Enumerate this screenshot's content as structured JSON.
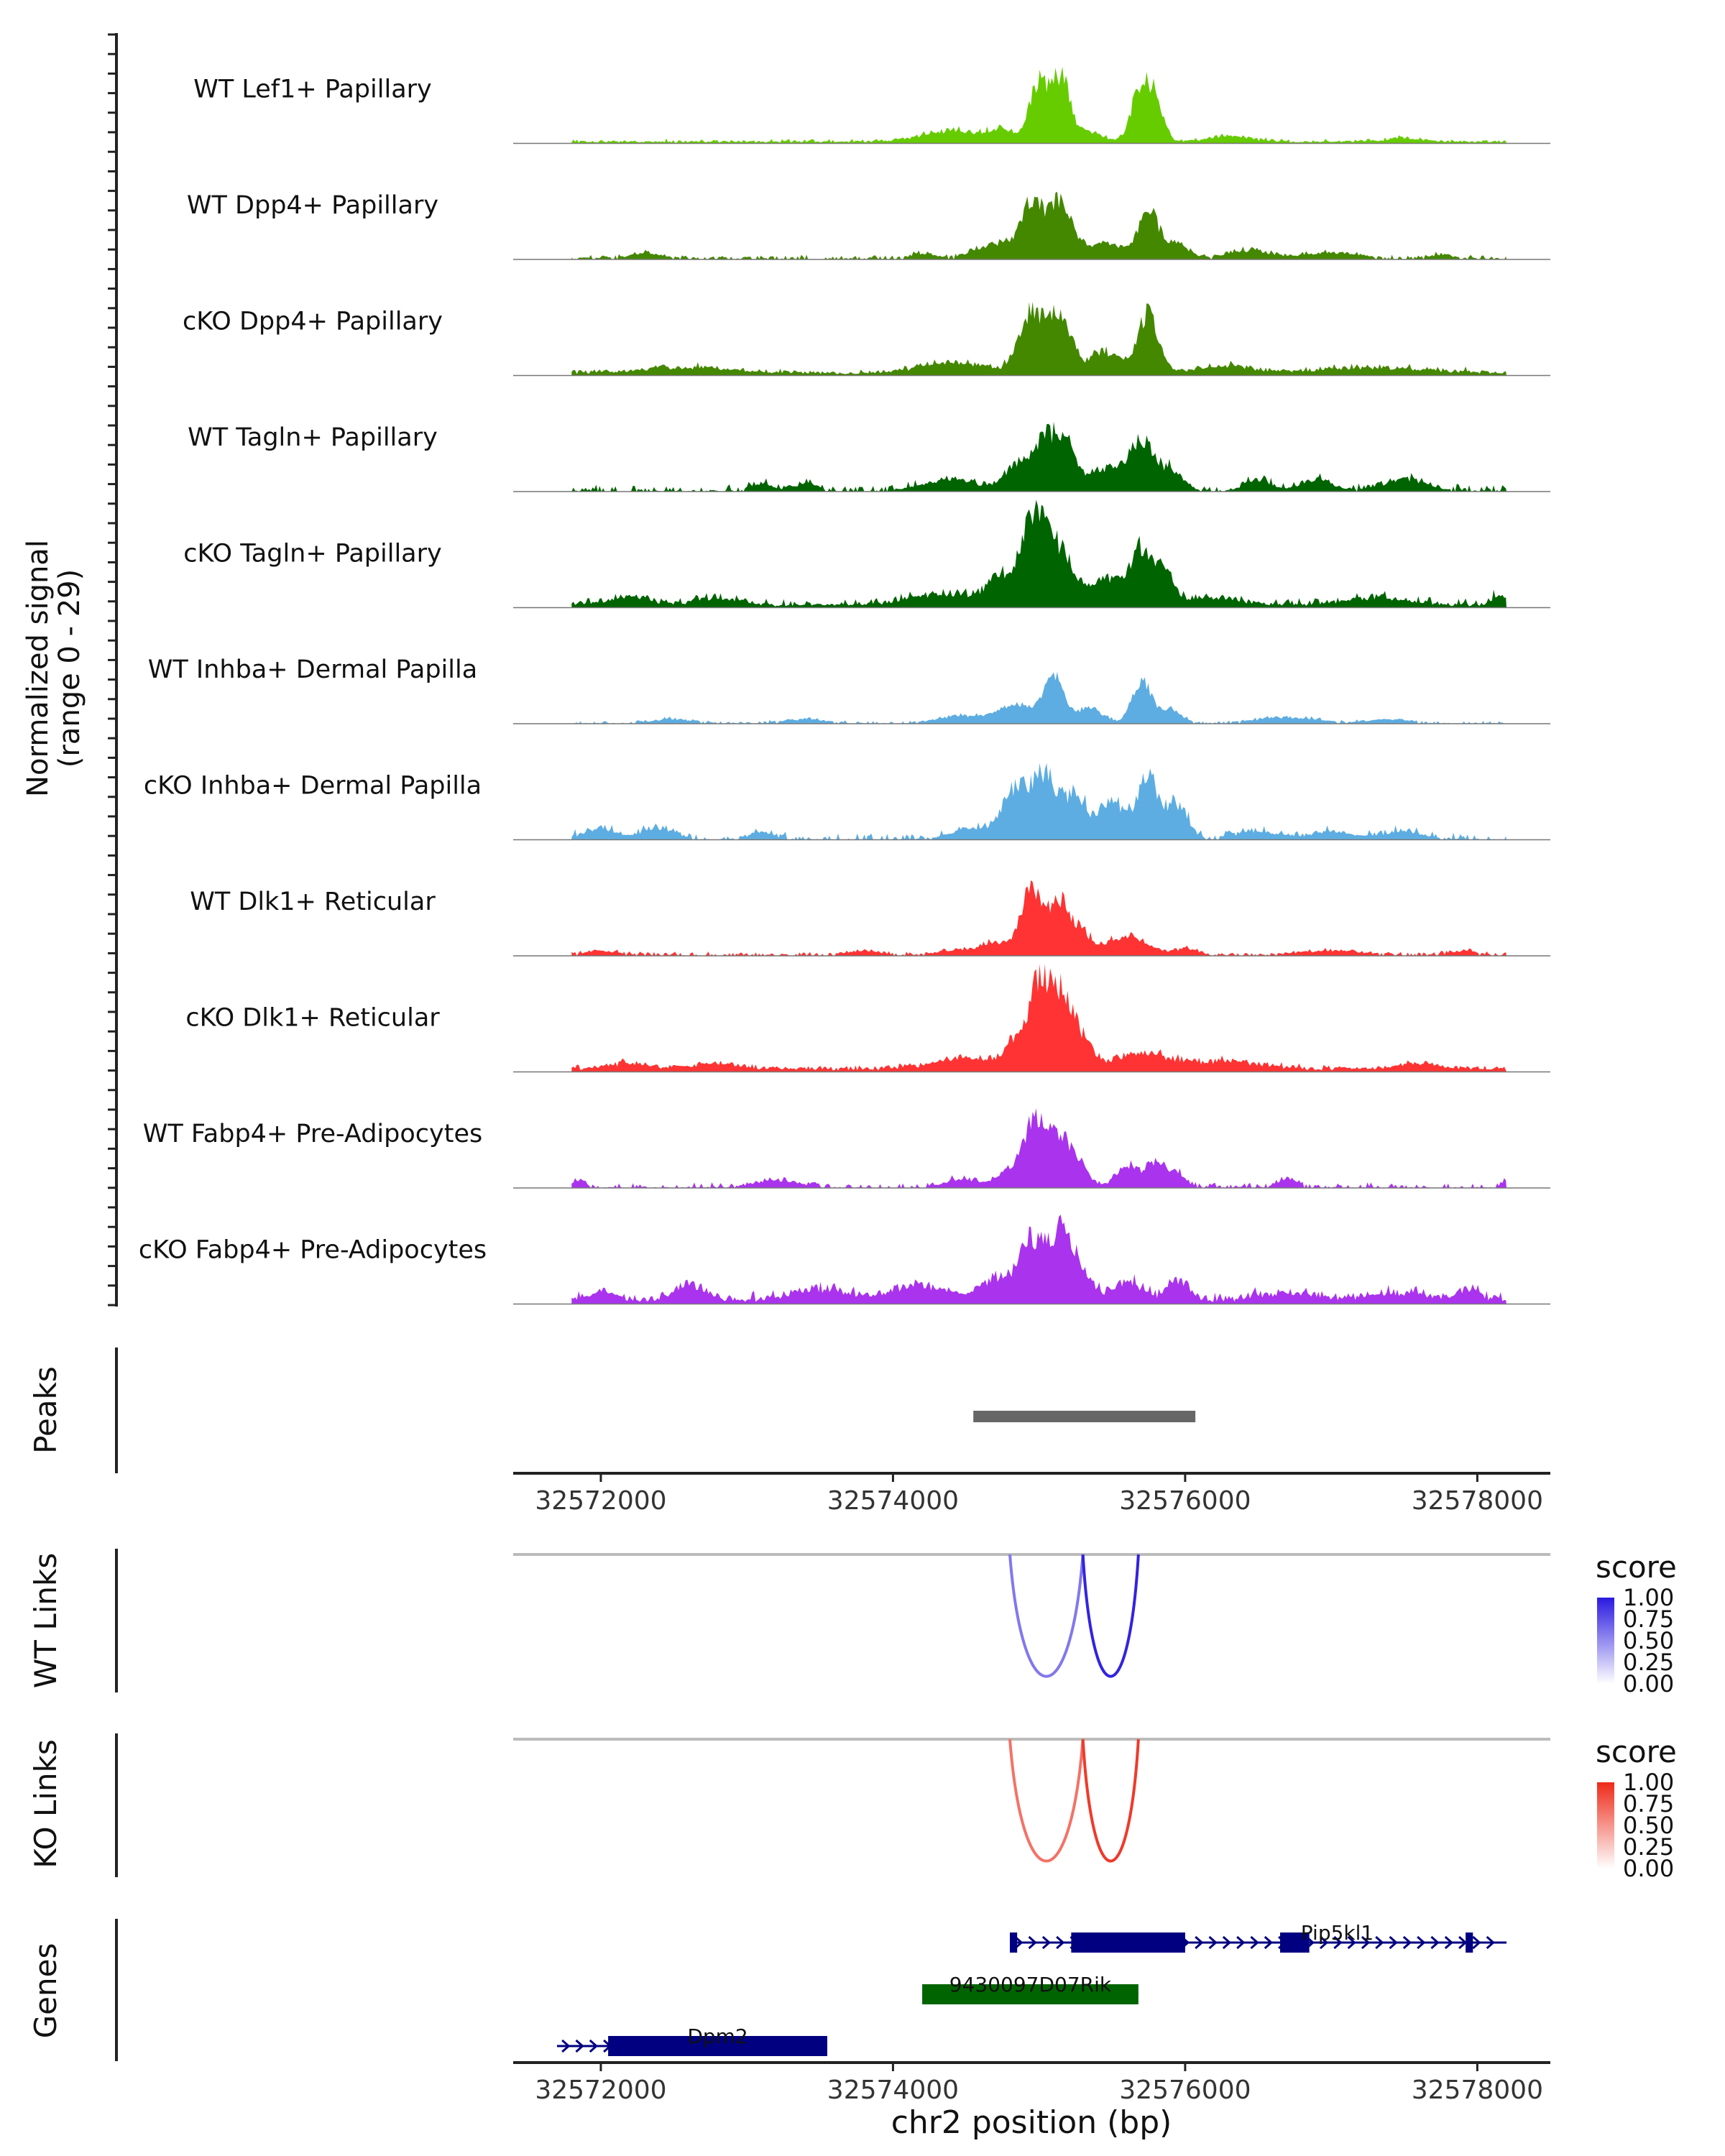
{
  "chart_data": {
    "type": "area",
    "title": "",
    "region": {
      "chromosome": "chr2",
      "start": 32571400,
      "end": 32578500
    },
    "coverage": {
      "ylabel_line1": "Normalized signal",
      "ylabel_line2": "(range 0 - 29)",
      "ylim": [
        0,
        29
      ],
      "x_start": 32571800,
      "x_end": 32578200,
      "tracks": [
        {
          "name": "WT Lef1+ Papillary",
          "color": "#66CC00",
          "baseline": 0.5,
          "noise": 0.6,
          "seed": 3,
          "peaks": [
            [
              32574400,
              280,
              3
            ],
            [
              32574750,
              120,
              3
            ],
            [
              32575000,
              90,
              17
            ],
            [
              32575150,
              80,
              16
            ],
            [
              32575300,
              160,
              3
            ],
            [
              32575700,
              90,
              15
            ],
            [
              32575800,
              80,
              9
            ],
            [
              32576300,
              200,
              1.5
            ],
            [
              32577500,
              150,
              1
            ]
          ]
        },
        {
          "name": "WT Dpp4+ Papillary",
          "color": "#448800",
          "baseline": 0.4,
          "noise": 0.8,
          "seed": 5,
          "peaks": [
            [
              32572300,
              150,
              1.2
            ],
            [
              32574200,
              120,
              1.2
            ],
            [
              32574700,
              180,
              4
            ],
            [
              32574950,
              110,
              14
            ],
            [
              32575150,
              120,
              15
            ],
            [
              32575450,
              150,
              4
            ],
            [
              32575750,
              100,
              13
            ],
            [
              32575950,
              100,
              4
            ],
            [
              32576450,
              200,
              2
            ],
            [
              32577000,
              250,
              1.5
            ],
            [
              32577750,
              100,
              1
            ]
          ]
        },
        {
          "name": "cKO Dpp4+ Papillary",
          "color": "#448800",
          "baseline": 0.8,
          "noise": 0.8,
          "seed": 7,
          "peaks": [
            [
              32572600,
              450,
              1.5
            ],
            [
              32574400,
              300,
              3
            ],
            [
              32574950,
              120,
              17
            ],
            [
              32575150,
              100,
              16
            ],
            [
              32575450,
              150,
              6
            ],
            [
              32575750,
              100,
              16
            ],
            [
              32576300,
              250,
              2
            ],
            [
              32577300,
              500,
              1.5
            ]
          ]
        },
        {
          "name": "WT Tagln+ Papillary",
          "color": "#006400",
          "baseline": 0.3,
          "noise": 1.5,
          "seed": 9,
          "peaks": [
            [
              32573100,
              100,
              2
            ],
            [
              32573400,
              100,
              2
            ],
            [
              32574400,
              250,
              3
            ],
            [
              32574850,
              120,
              7
            ],
            [
              32575050,
              110,
              15
            ],
            [
              32575200,
              90,
              10
            ],
            [
              32575450,
              150,
              6
            ],
            [
              32575700,
              120,
              13
            ],
            [
              32575900,
              120,
              5
            ],
            [
              32576500,
              120,
              3
            ],
            [
              32576900,
              150,
              3
            ],
            [
              32577500,
              200,
              3
            ]
          ]
        },
        {
          "name": "cKO Tagln+ Papillary",
          "color": "#006400",
          "baseline": 0.8,
          "noise": 1.5,
          "seed": 11,
          "peaks": [
            [
              32572200,
              200,
              2
            ],
            [
              32572800,
              200,
              2
            ],
            [
              32574300,
              300,
              3
            ],
            [
              32574750,
              150,
              8
            ],
            [
              32574970,
              110,
              24
            ],
            [
              32575150,
              120,
              15
            ],
            [
              32575450,
              150,
              7
            ],
            [
              32575700,
              110,
              15
            ],
            [
              32575850,
              100,
              8
            ],
            [
              32576200,
              250,
              2
            ],
            [
              32577300,
              300,
              2
            ],
            [
              32578150,
              60,
              3
            ]
          ]
        },
        {
          "name": "WT Inhba+ Dermal Papilla",
          "color": "#5DADE2",
          "baseline": 0.2,
          "noise": 0.5,
          "seed": 13,
          "peaks": [
            [
              32572500,
              200,
              1
            ],
            [
              32573400,
              200,
              1
            ],
            [
              32574500,
              250,
              2
            ],
            [
              32574850,
              150,
              5
            ],
            [
              32575100,
              100,
              12
            ],
            [
              32575350,
              120,
              4
            ],
            [
              32575700,
              90,
              12
            ],
            [
              32575900,
              100,
              4
            ],
            [
              32576700,
              300,
              1.5
            ],
            [
              32577400,
              200,
              1
            ]
          ]
        },
        {
          "name": "cKO Inhba+ Dermal Papilla",
          "color": "#5DADE2",
          "baseline": 0.2,
          "noise": 1.8,
          "seed": 15,
          "peaks": [
            [
              32572000,
              150,
              3
            ],
            [
              32572400,
              150,
              3
            ],
            [
              32573100,
              100,
              2
            ],
            [
              32574550,
              200,
              3
            ],
            [
              32574850,
              130,
              14
            ],
            [
              32575050,
              110,
              17
            ],
            [
              32575250,
              100,
              12
            ],
            [
              32575500,
              130,
              10
            ],
            [
              32575750,
              100,
              17
            ],
            [
              32575950,
              100,
              9
            ],
            [
              32576500,
              200,
              2
            ],
            [
              32577000,
              200,
              2
            ],
            [
              32577500,
              200,
              2
            ]
          ]
        },
        {
          "name": "WT Dlk1+ Reticular",
          "color": "#FF3333",
          "baseline": 0.4,
          "noise": 0.6,
          "seed": 17,
          "peaks": [
            [
              32572000,
              150,
              1
            ],
            [
              32573800,
              150,
              1
            ],
            [
              32574500,
              200,
              1.5
            ],
            [
              32574700,
              100,
              3
            ],
            [
              32574950,
              110,
              18
            ],
            [
              32575150,
              100,
              14
            ],
            [
              32575300,
              80,
              5
            ],
            [
              32575600,
              200,
              5
            ],
            [
              32576000,
              100,
              1.5
            ],
            [
              32577000,
              300,
              1
            ],
            [
              32577900,
              100,
              1
            ]
          ]
        },
        {
          "name": "cKO Dlk1+ Reticular",
          "color": "#FF3333",
          "baseline": 1,
          "noise": 0.8,
          "seed": 19,
          "peaks": [
            [
              32572200,
              200,
              1.5
            ],
            [
              32572800,
              200,
              1.5
            ],
            [
              32574500,
              300,
              3
            ],
            [
              32574850,
              100,
              8
            ],
            [
              32575000,
              90,
              22
            ],
            [
              32575150,
              110,
              21
            ],
            [
              32575300,
              90,
              6
            ],
            [
              32575700,
              300,
              4
            ],
            [
              32576300,
              300,
              2
            ],
            [
              32577600,
              200,
              1.5
            ]
          ]
        },
        {
          "name": "WT Fabp4+ Pre-Adipocytes",
          "color": "#AA33EE",
          "baseline": 0.2,
          "noise": 1.2,
          "seed": 21,
          "peaks": [
            [
              32571850,
              50,
              2
            ],
            [
              32573200,
              200,
              2
            ],
            [
              32574500,
              200,
              2
            ],
            [
              32574800,
              100,
              4
            ],
            [
              32574970,
              110,
              18
            ],
            [
              32575150,
              110,
              14
            ],
            [
              32575300,
              80,
              4
            ],
            [
              32575600,
              100,
              6
            ],
            [
              32575800,
              100,
              7
            ],
            [
              32575950,
              80,
              3
            ],
            [
              32576700,
              100,
              2
            ],
            [
              32578200,
              40,
              2
            ]
          ]
        },
        {
          "name": "cKO Fabp4+ Pre-Adipocytes",
          "color": "#AA33EE",
          "baseline": 1,
          "noise": 1.8,
          "seed": 23,
          "peaks": [
            [
              32572000,
              150,
              2
            ],
            [
              32572600,
              150,
              4
            ],
            [
              32573500,
              300,
              3
            ],
            [
              32574200,
              250,
              4
            ],
            [
              32574700,
              150,
              6
            ],
            [
              32574950,
              120,
              16
            ],
            [
              32575150,
              110,
              18
            ],
            [
              32575300,
              100,
              6
            ],
            [
              32575600,
              150,
              5
            ],
            [
              32575950,
              100,
              6
            ],
            [
              32576700,
              300,
              2
            ],
            [
              32577500,
              300,
              2
            ],
            [
              32577950,
              100,
              3
            ]
          ]
        }
      ]
    },
    "peaks_track": {
      "label": "Peaks",
      "intervals": [
        [
          32574550,
          32576070
        ]
      ],
      "color": "#666666"
    },
    "axis": {
      "ticks": [
        32572000,
        32574000,
        32576000,
        32578000
      ],
      "tick_labels": [
        "32572000",
        "32574000",
        "32576000",
        "32578000"
      ],
      "xlabel": "chr2 position (bp)"
    },
    "links": [
      {
        "label": "WT Links",
        "legend_title": "score",
        "legend_ticks": [
          "1.00",
          "0.75",
          "0.50",
          "0.25",
          "0.00"
        ],
        "high_color": "#2A1AE0",
        "low_color": "#FFFFFF",
        "arcs": [
          {
            "start": 32574800,
            "end": 32575300,
            "score": 0.45
          },
          {
            "start": 32575300,
            "end": 32575680,
            "score": 0.95
          }
        ]
      },
      {
        "label": "KO Links",
        "legend_title": "score",
        "legend_ticks": [
          "1.00",
          "0.75",
          "0.50",
          "0.25",
          "0.00"
        ],
        "high_color": "#EE2A1A",
        "low_color": "#FFFFFF",
        "arcs": [
          {
            "start": 32574800,
            "end": 32575300,
            "score": 0.55
          },
          {
            "start": 32575300,
            "end": 32575680,
            "score": 0.9
          }
        ]
      }
    ],
    "genes": {
      "label": "Genes",
      "models": [
        {
          "name": "Pip5kl1",
          "strand": "+",
          "color": "#000080",
          "row": 0,
          "start": 32574800,
          "end": 32578200,
          "exons": [
            [
              32574800,
              32574850
            ],
            [
              32575220,
              32576000
            ],
            [
              32576650,
              32576850
            ],
            [
              32577920,
              32577970
            ]
          ]
        },
        {
          "name": "9430097D07Rik",
          "strand": "+",
          "color": "#006400",
          "row": 1,
          "start": 32574200,
          "end": 32575680,
          "exons": [
            [
              32574200,
              32575680
            ]
          ]
        },
        {
          "name": "Dpm2",
          "strand": "+",
          "color": "#000080",
          "row": 2,
          "start": 32571700,
          "end": 32573550,
          "exons": [
            [
              32572050,
              32573550
            ]
          ]
        }
      ]
    }
  }
}
